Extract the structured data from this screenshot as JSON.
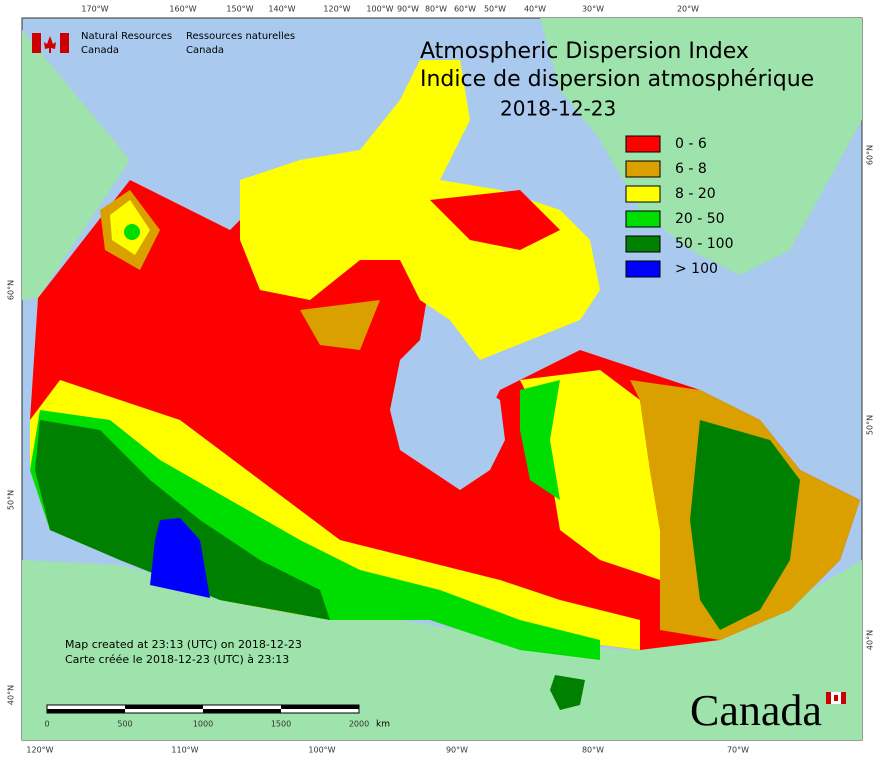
{
  "title": "Atmospheric Dispersion Index",
  "title_fr": "Indice de dispersion atmosphérique",
  "date": "2018-12-23",
  "agency": {
    "en": [
      "Natural Resources",
      "Canada"
    ],
    "fr": [
      "Ressources naturelles",
      "Canada"
    ]
  },
  "legend": [
    {
      "label": "0 - 6",
      "color": "#ff0000"
    },
    {
      "label": "6 - 8",
      "color": "#d9a000"
    },
    {
      "label": "8 - 20",
      "color": "#ffff00"
    },
    {
      "label": "20 - 50",
      "color": "#00dd00"
    },
    {
      "label": "50 - 100",
      "color": "#008000"
    },
    {
      "label": "> 100",
      "color": "#0000ff"
    }
  ],
  "top_labels": [
    "170°W",
    "160°W",
    "150°W",
    "140°W",
    "120°W",
    "100°W",
    "90°W",
    "80°W",
    "60°W",
    "50°W",
    "40°W",
    "30°W",
    "20°W"
  ],
  "bottom_labels": [
    "120°W",
    "110°W",
    "100°W",
    "90°W",
    "80°W",
    "70°W"
  ],
  "left_labels": [
    "60°N",
    "50°N",
    "40°N"
  ],
  "right_labels": [
    "60°N",
    "50°N",
    "40°N"
  ],
  "footer": [
    "Map created at 23:13 (UTC) on 2018-12-23",
    "Carte créée le 2018-12-23 (UTC) à 23:13"
  ],
  "scale": {
    "labels": [
      "0",
      "500",
      "1000",
      "1500",
      "2000"
    ],
    "unit": "km"
  },
  "wordmark": "Canada"
}
